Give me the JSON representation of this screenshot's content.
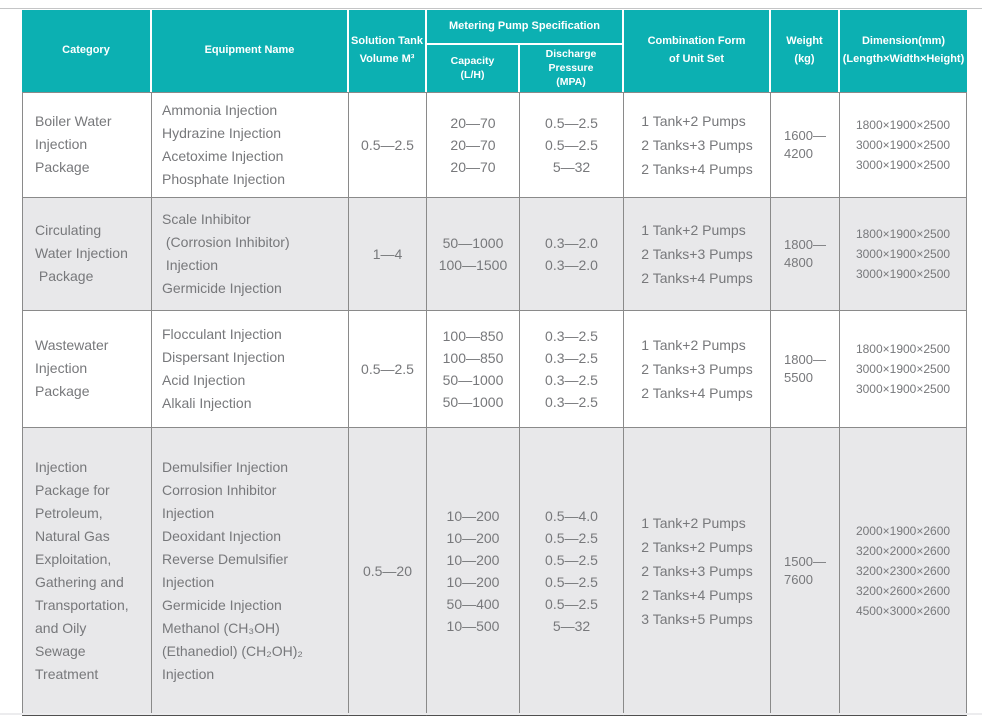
{
  "colors": {
    "header_bg": "#0cb0b2",
    "header_text": "#ffffff",
    "row_alt_bg": "#e8e8ea",
    "body_text": "#77787b",
    "grid_border": "#8a8a8a",
    "bottom_border": "#4f4f4f",
    "page_bg": "#ffffff"
  },
  "table": {
    "header": {
      "category": "Category",
      "equipment": "Equipment Name",
      "tank_line1": "Solution Tank",
      "tank_line2": "Volume M³",
      "pump_spec": "Metering Pump Specification",
      "capacity_line1": "Capacity",
      "capacity_line2": "(L/H)",
      "pressure_line1": "Discharge Pressure",
      "pressure_line2": "(MPA)",
      "combination_line1": "Combination Form",
      "combination_line2": "of Unit Set",
      "weight_line1": "Weight",
      "weight_line2": "(kg)",
      "dimension_line1": "Dimension(mm)",
      "dimension_line2": "(Length×Width×Height)"
    },
    "rows": [
      {
        "category": [
          "Boiler Water",
          "Injection",
          "Package"
        ],
        "equipment": [
          "Ammonia Injection",
          "Hydrazine Injection",
          "Acetoxime Injection",
          "Phosphate Injection"
        ],
        "volume": "0.5—2.5",
        "capacity": [
          "20—70",
          "20—70",
          "20—70"
        ],
        "pressure": [
          "0.5—2.5",
          "0.5—2.5",
          "5—32"
        ],
        "combination": [
          "1 Tank+2 Pumps",
          "2 Tanks+3 Pumps",
          "2 Tanks+4 Pumps"
        ],
        "weight": [
          "1600—",
          "4200"
        ],
        "dimension": [
          "1800×1900×2500",
          "3000×1900×2500",
          "3000×1900×2500"
        ]
      },
      {
        "category": [
          "Circulating",
          "Water Injection",
          " Package"
        ],
        "equipment": [
          "Scale Inhibitor",
          " (Corrosion Inhibitor)",
          " Injection",
          "Germicide Injection"
        ],
        "volume": "1—4",
        "capacity": [
          "50—1000",
          "100—1500"
        ],
        "pressure": [
          "0.3—2.0",
          "0.3—2.0"
        ],
        "combination": [
          "1 Tank+2 Pumps",
          "2 Tanks+3 Pumps",
          "2 Tanks+4 Pumps"
        ],
        "weight": [
          "1800—",
          "4800"
        ],
        "dimension": [
          "1800×1900×2500",
          "3000×1900×2500",
          "3000×1900×2500"
        ]
      },
      {
        "category": [
          "Wastewater",
          "Injection",
          "Package"
        ],
        "equipment": [
          "Flocculant Injection",
          "Dispersant Injection",
          "Acid Injection",
          "Alkali Injection"
        ],
        "volume": "0.5—2.5",
        "capacity": [
          "100—850",
          "100—850",
          "50—1000",
          "50—1000"
        ],
        "pressure": [
          "0.3—2.5",
          "0.3—2.5",
          "0.3—2.5",
          "0.3—2.5"
        ],
        "combination": [
          "1 Tank+2 Pumps",
          "2 Tanks+3 Pumps",
          "2 Tanks+4 Pumps"
        ],
        "weight": [
          "1800—",
          "5500"
        ],
        "dimension": [
          "1800×1900×2500",
          "3000×1900×2500",
          "3000×1900×2500"
        ]
      },
      {
        "category": [
          "Injection",
          "Package for",
          "Petroleum,",
          "Natural Gas",
          "Exploitation,",
          "Gathering and",
          "Transportation,",
          "and Oily",
          "Sewage",
          "Treatment"
        ],
        "equipment": [
          "Demulsifier Injection",
          "Corrosion Inhibitor",
          "Injection",
          "Deoxidant Injection",
          "Reverse Demulsifier",
          "Injection",
          "Germicide Injection",
          "Methanol (CH₃OH)",
          "(Ethanediol) (CH₂OH)₂",
          "Injection"
        ],
        "volume": "0.5—20",
        "capacity": [
          "10—200",
          "10—200",
          "10—200",
          "10—200",
          "50—400",
          "10—500"
        ],
        "pressure": [
          "0.5—4.0",
          "0.5—2.5",
          "0.5—2.5",
          "0.5—2.5",
          "0.5—2.5",
          "5—32"
        ],
        "combination": [
          "1 Tank+2 Pumps",
          "2 Tanks+2 Pumps",
          "2 Tanks+3 Pumps",
          "2 Tanks+4 Pumps",
          "3 Tanks+5 Pumps"
        ],
        "weight": [
          "1500—",
          "7600"
        ],
        "dimension": [
          "2000×1900×2600",
          "3200×2000×2600",
          "3200×2300×2600",
          "3200×2600×2600",
          "4500×3000×2600"
        ]
      }
    ]
  }
}
